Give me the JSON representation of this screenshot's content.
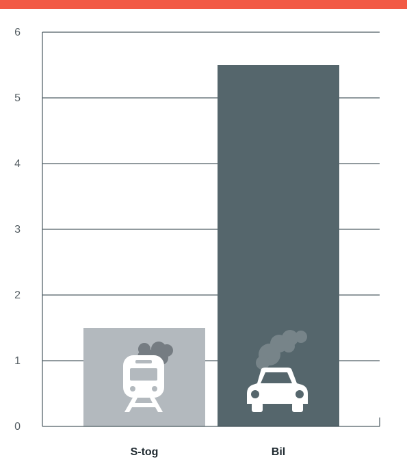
{
  "colors": {
    "accent_bar": "#f25a45",
    "gridline": "#23363e",
    "axis": "#23363e"
  },
  "chart_data": {
    "type": "bar",
    "title": "",
    "xlabel": "",
    "ylabel": "",
    "categories": [
      "S-tog",
      "Bil"
    ],
    "values": [
      1.5,
      5.5
    ],
    "bar_colors": [
      "#b3b9be",
      "#55666c"
    ],
    "icons": [
      "train-with-smoke-icon",
      "car-with-smoke-icon"
    ],
    "ylim": [
      0,
      6
    ],
    "yticks": [
      "0",
      "1",
      "2",
      "3",
      "4",
      "5",
      "6"
    ],
    "grid": true,
    "legend": "none"
  }
}
